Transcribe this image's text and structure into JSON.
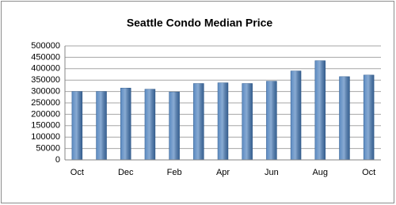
{
  "chart_data": {
    "type": "bar",
    "title": "Seattle Condo Median Price",
    "categories": [
      "Oct",
      null,
      "Dec",
      null,
      "Feb",
      null,
      "Apr",
      null,
      "Jun",
      null,
      "Aug",
      null,
      "Oct"
    ],
    "values": [
      300000,
      300000,
      315000,
      310000,
      298000,
      335000,
      338000,
      335000,
      345000,
      390000,
      435000,
      365000,
      372000
    ],
    "color": "#4a7ebb",
    "ylim": [
      0,
      500000
    ],
    "yticks": [
      0,
      50000,
      100000,
      150000,
      200000,
      250000,
      300000,
      350000,
      400000,
      450000,
      500000
    ],
    "grid": true
  }
}
